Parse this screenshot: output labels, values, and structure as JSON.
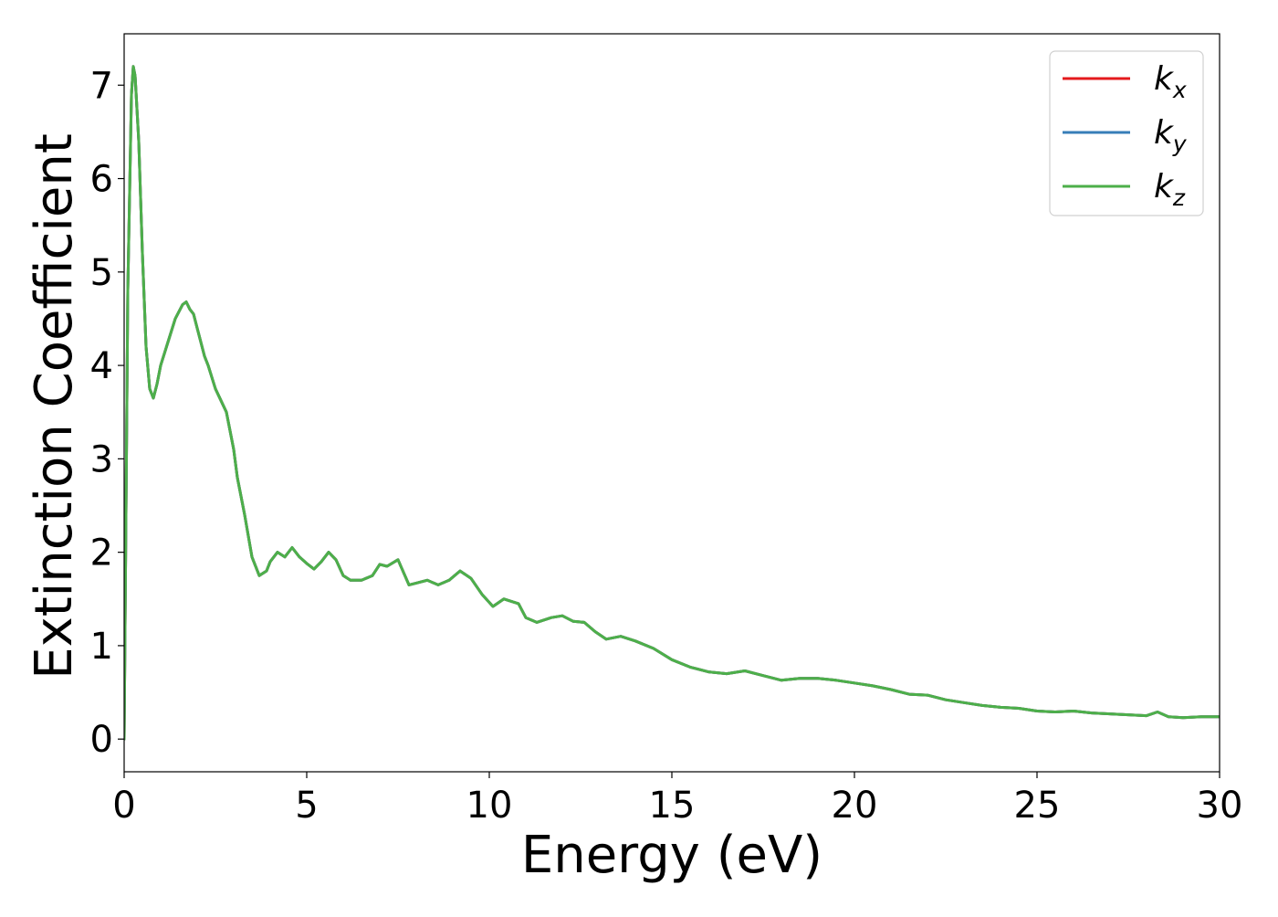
{
  "chart_data": {
    "type": "line",
    "title": "",
    "xlabel": "Energy (eV)",
    "ylabel": "Extinction Coefficient",
    "xlim": [
      0,
      30
    ],
    "ylim": [
      -0.35,
      7.55
    ],
    "xticks": [
      0,
      5,
      10,
      15,
      20,
      25,
      30
    ],
    "yticks": [
      0,
      1,
      2,
      3,
      4,
      5,
      6,
      7
    ],
    "grid": false,
    "legend": {
      "position": "top-right",
      "entries": [
        {
          "base": "k",
          "sub": "x",
          "color": "#e41a1c"
        },
        {
          "base": "k",
          "sub": "y",
          "color": "#377eb8"
        },
        {
          "base": "k",
          "sub": "z",
          "color": "#4daf4a"
        }
      ]
    },
    "x": [
      0,
      0.1,
      0.2,
      0.25,
      0.3,
      0.4,
      0.5,
      0.6,
      0.7,
      0.8,
      0.9,
      1.0,
      1.2,
      1.4,
      1.6,
      1.7,
      1.8,
      1.9,
      2.0,
      2.1,
      2.2,
      2.3,
      2.5,
      2.8,
      3.0,
      3.1,
      3.3,
      3.5,
      3.7,
      3.9,
      4.0,
      4.2,
      4.4,
      4.6,
      4.8,
      5.0,
      5.2,
      5.4,
      5.6,
      5.8,
      6.0,
      6.2,
      6.5,
      6.8,
      7.0,
      7.2,
      7.5,
      7.8,
      8.0,
      8.3,
      8.6,
      8.9,
      9.2,
      9.5,
      9.8,
      10.1,
      10.4,
      10.8,
      11.0,
      11.3,
      11.7,
      12.0,
      12.3,
      12.6,
      12.9,
      13.2,
      13.6,
      14.0,
      14.5,
      15.0,
      15.5,
      16.0,
      16.5,
      17.0,
      17.5,
      18.0,
      18.5,
      19.0,
      19.5,
      20.0,
      20.5,
      21.0,
      21.5,
      22.0,
      22.5,
      23.0,
      23.5,
      24.0,
      24.5,
      25.0,
      25.5,
      26.0,
      26.5,
      27.0,
      27.5,
      28.0,
      28.3,
      28.6,
      29.0,
      29.5,
      30.0
    ],
    "series": [
      {
        "name": "kx",
        "color": "#e41a1c",
        "values": [
          0.0,
          4.8,
          6.9,
          7.2,
          7.1,
          6.4,
          5.2,
          4.2,
          3.75,
          3.65,
          3.8,
          4.0,
          4.25,
          4.5,
          4.65,
          4.68,
          4.6,
          4.55,
          4.4,
          4.25,
          4.1,
          4.0,
          3.75,
          3.5,
          3.1,
          2.8,
          2.4,
          1.95,
          1.75,
          1.8,
          1.9,
          2.0,
          1.95,
          2.05,
          1.95,
          1.88,
          1.82,
          1.9,
          2.0,
          1.92,
          1.75,
          1.7,
          1.7,
          1.75,
          1.87,
          1.85,
          1.92,
          1.65,
          1.67,
          1.7,
          1.65,
          1.7,
          1.8,
          1.72,
          1.55,
          1.42,
          1.5,
          1.45,
          1.3,
          1.25,
          1.3,
          1.32,
          1.26,
          1.25,
          1.15,
          1.07,
          1.1,
          1.05,
          0.97,
          0.85,
          0.77,
          0.72,
          0.7,
          0.73,
          0.68,
          0.63,
          0.65,
          0.65,
          0.63,
          0.6,
          0.57,
          0.53,
          0.48,
          0.47,
          0.42,
          0.39,
          0.36,
          0.34,
          0.33,
          0.3,
          0.29,
          0.3,
          0.28,
          0.27,
          0.26,
          0.25,
          0.29,
          0.24,
          0.23,
          0.24,
          0.24
        ]
      },
      {
        "name": "ky",
        "color": "#377eb8",
        "values": [
          0.0,
          4.8,
          6.9,
          7.2,
          7.1,
          6.4,
          5.2,
          4.2,
          3.75,
          3.65,
          3.8,
          4.0,
          4.25,
          4.5,
          4.65,
          4.68,
          4.6,
          4.55,
          4.4,
          4.25,
          4.1,
          4.0,
          3.75,
          3.5,
          3.1,
          2.8,
          2.4,
          1.95,
          1.75,
          1.8,
          1.9,
          2.0,
          1.95,
          2.05,
          1.95,
          1.88,
          1.82,
          1.9,
          2.0,
          1.92,
          1.75,
          1.7,
          1.7,
          1.75,
          1.87,
          1.85,
          1.92,
          1.65,
          1.67,
          1.7,
          1.65,
          1.7,
          1.8,
          1.72,
          1.55,
          1.42,
          1.5,
          1.45,
          1.3,
          1.25,
          1.3,
          1.32,
          1.26,
          1.25,
          1.15,
          1.07,
          1.1,
          1.05,
          0.97,
          0.85,
          0.77,
          0.72,
          0.7,
          0.73,
          0.68,
          0.63,
          0.65,
          0.65,
          0.63,
          0.6,
          0.57,
          0.53,
          0.48,
          0.47,
          0.42,
          0.39,
          0.36,
          0.34,
          0.33,
          0.3,
          0.29,
          0.3,
          0.28,
          0.27,
          0.26,
          0.25,
          0.29,
          0.24,
          0.23,
          0.24,
          0.24
        ]
      },
      {
        "name": "kz",
        "color": "#4daf4a",
        "values": [
          0.0,
          4.8,
          6.9,
          7.2,
          7.1,
          6.4,
          5.2,
          4.2,
          3.75,
          3.65,
          3.8,
          4.0,
          4.25,
          4.5,
          4.65,
          4.68,
          4.6,
          4.55,
          4.4,
          4.25,
          4.1,
          4.0,
          3.75,
          3.5,
          3.1,
          2.8,
          2.4,
          1.95,
          1.75,
          1.8,
          1.9,
          2.0,
          1.95,
          2.05,
          1.95,
          1.88,
          1.82,
          1.9,
          2.0,
          1.92,
          1.75,
          1.7,
          1.7,
          1.75,
          1.87,
          1.85,
          1.92,
          1.65,
          1.67,
          1.7,
          1.65,
          1.7,
          1.8,
          1.72,
          1.55,
          1.42,
          1.5,
          1.45,
          1.3,
          1.25,
          1.3,
          1.32,
          1.26,
          1.25,
          1.15,
          1.07,
          1.1,
          1.05,
          0.97,
          0.85,
          0.77,
          0.72,
          0.7,
          0.73,
          0.68,
          0.63,
          0.65,
          0.65,
          0.63,
          0.6,
          0.57,
          0.53,
          0.48,
          0.47,
          0.42,
          0.39,
          0.36,
          0.34,
          0.33,
          0.3,
          0.29,
          0.3,
          0.28,
          0.27,
          0.26,
          0.25,
          0.29,
          0.24,
          0.23,
          0.24,
          0.24
        ]
      }
    ]
  }
}
